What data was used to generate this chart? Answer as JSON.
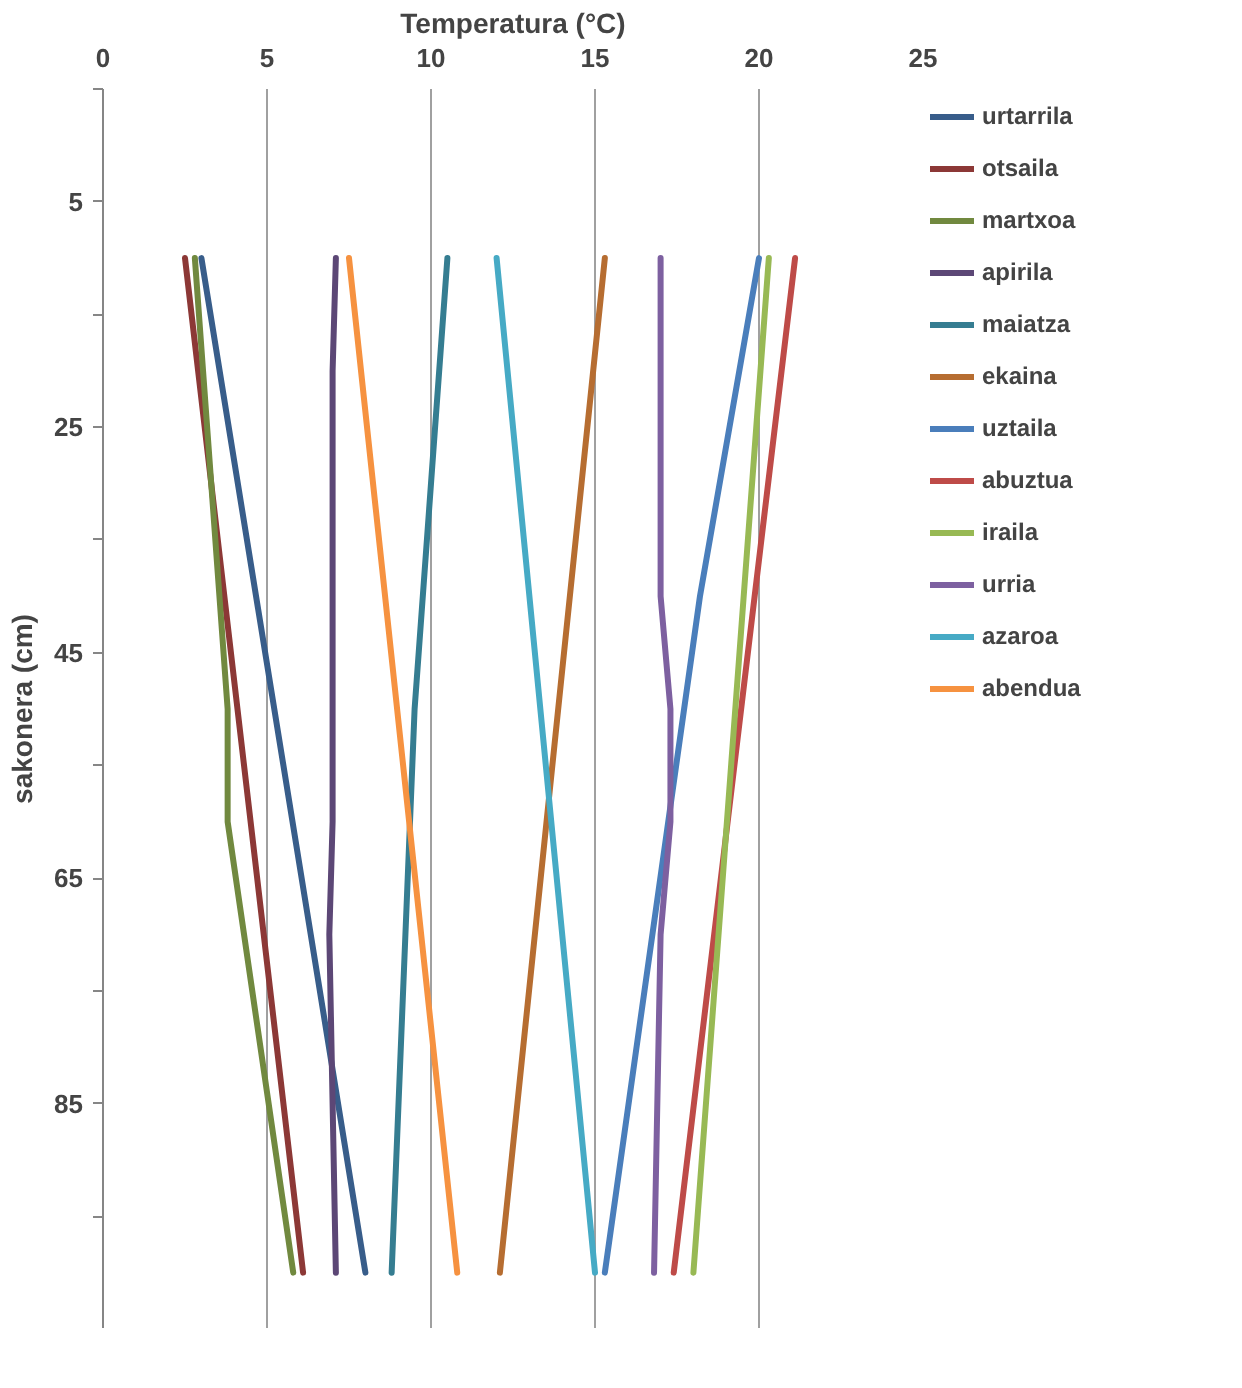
{
  "chart_data": {
    "type": "line",
    "orientation": "horizontal",
    "xlabel": "Temperatura (°C)",
    "ylabel": "sakonera (cm)",
    "xlim": [
      0,
      25
    ],
    "xticks": [
      0,
      5,
      10,
      15,
      20,
      25
    ],
    "ylim": [
      105,
      -5
    ],
    "yticks": [
      {
        "value": -5,
        "label": null
      },
      5,
      {
        "value": 15,
        "label": null
      },
      25,
      {
        "value": 35,
        "label": null
      },
      45,
      {
        "value": 55,
        "label": null
      },
      65,
      {
        "value": 75,
        "label": null
      },
      85,
      {
        "value": 95,
        "label": null
      },
      {
        "value": 105,
        "label": null
      }
    ],
    "grid": "x",
    "legend": "right",
    "marker": "none",
    "line_style": "solid",
    "series": [
      {
        "name": "urtarrila",
        "color": "#385d8a",
        "x": [
          10,
          100
        ],
        "values": [
          3.0,
          8.0
        ]
      },
      {
        "name": "otsaila",
        "color": "#8c3836",
        "x": [
          10,
          100
        ],
        "values": [
          2.5,
          6.1
        ]
      },
      {
        "name": "martxoa",
        "color": "#71893f",
        "x": [
          10,
          50,
          60,
          100
        ],
        "values": [
          2.8,
          3.8,
          3.8,
          5.8
        ]
      },
      {
        "name": "apirila",
        "color": "#5c4776",
        "x": [
          10,
          20,
          60,
          70,
          100
        ],
        "values": [
          7.1,
          7.0,
          7.0,
          6.9,
          7.1
        ]
      },
      {
        "name": "maiatza",
        "color": "#357d91",
        "x": [
          10,
          30,
          50,
          100
        ],
        "values": [
          10.5,
          10.0,
          9.5,
          8.8
        ]
      },
      {
        "name": "ekaina",
        "color": "#b66d31",
        "x": [
          10,
          100
        ],
        "values": [
          15.3,
          12.1
        ]
      },
      {
        "name": "uztaila",
        "color": "#4a7ebb",
        "x": [
          10,
          40,
          100
        ],
        "values": [
          20.0,
          18.2,
          15.3
        ]
      },
      {
        "name": "abuztua",
        "color": "#be4b48",
        "x": [
          10,
          100
        ],
        "values": [
          21.1,
          17.4
        ]
      },
      {
        "name": "iraila",
        "color": "#98b954",
        "x": [
          10,
          100
        ],
        "values": [
          20.3,
          18.0
        ]
      },
      {
        "name": "urria",
        "color": "#7d60a0",
        "x": [
          10,
          40,
          50,
          60,
          70,
          100
        ],
        "values": [
          17.0,
          17.0,
          17.3,
          17.3,
          17.0,
          16.8
        ]
      },
      {
        "name": "azaroa",
        "color": "#46aac5",
        "x": [
          10,
          100
        ],
        "values": [
          12.0,
          15.0
        ]
      },
      {
        "name": "abendua",
        "color": "#f69240",
        "x": [
          10,
          100
        ],
        "values": [
          7.5,
          10.8
        ]
      }
    ]
  }
}
